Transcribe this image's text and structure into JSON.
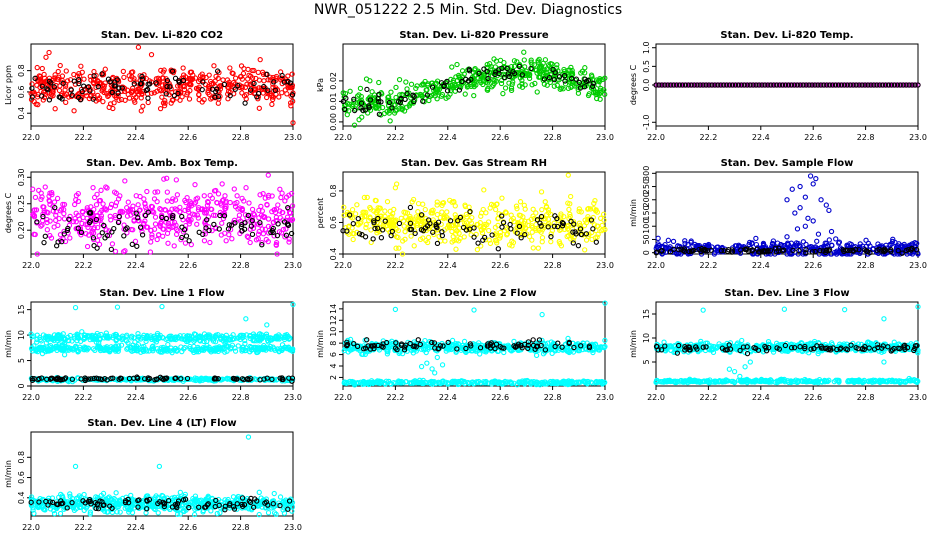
{
  "page": {
    "title": "NWR_051222  2.5 Min. Std. Dev. Diagnostics"
  },
  "colors": {
    "black": "#000000",
    "red": "#ff0000",
    "green": "#00cc00",
    "magenta": "#ff00ff",
    "yellow": "#ffff00",
    "blue": "#0000cc",
    "cyan": "#00ffff"
  },
  "chart_data": [
    {
      "type": "scatter",
      "title": "Stan. Dev. Li-820 CO2",
      "ylabel": "Licor ppm",
      "xlabel": "",
      "xlim": [
        22.0,
        23.0
      ],
      "ylim": [
        0.28,
        1.05
      ],
      "xticks": [
        "22.0",
        "22.2",
        "22.4",
        "22.6",
        "22.8",
        "23.0"
      ],
      "yticks": [
        "0.4",
        "0.6",
        "0.8"
      ],
      "ytick_values": [
        0.4,
        0.6,
        0.8
      ],
      "series": [
        {
          "name": "main",
          "color": "#ff0000",
          "mean": 0.65,
          "sd": 0.09,
          "n": 500,
          "seed": 11
        },
        {
          "name": "black",
          "color": "#000000",
          "mean": 0.64,
          "sd": 0.08,
          "n": 90,
          "seed": 12
        }
      ],
      "outliers": [
        [
          22.41,
          1.02
        ],
        [
          22.46,
          0.95
        ],
        [
          23.0,
          0.31
        ]
      ]
    },
    {
      "type": "scatter",
      "title": "Stan. Dev. Li-820 Pressure",
      "ylabel": "kPa",
      "xlabel": "",
      "xlim": [
        22.0,
        23.0
      ],
      "ylim": [
        -0.002,
        0.038
      ],
      "xticks": [
        "22.0",
        "22.2",
        "22.4",
        "22.6",
        "22.8",
        "23.0"
      ],
      "yticks": [
        "0.00",
        "0.01",
        "0.02"
      ],
      "ytick_values": [
        0.0,
        0.01,
        0.02
      ],
      "trend": [
        [
          22.0,
          0.009
        ],
        [
          22.2,
          0.01
        ],
        [
          22.35,
          0.015
        ],
        [
          22.5,
          0.022
        ],
        [
          22.7,
          0.025
        ],
        [
          22.85,
          0.022
        ],
        [
          23.0,
          0.016
        ]
      ],
      "series": [
        {
          "name": "main",
          "color": "#00cc00",
          "sd": 0.0035,
          "n": 500,
          "seed": 21
        },
        {
          "name": "black",
          "color": "#000000",
          "sd": 0.002,
          "n": 80,
          "seed": 22
        }
      ],
      "outliers": [
        [
          22.69,
          0.034
        ],
        [
          22.18,
          0.0005
        ]
      ]
    },
    {
      "type": "scatter",
      "title": "Stan. Dev. Li-820 Temp.",
      "ylabel": "degrees C",
      "xlabel": "",
      "xlim": [
        22.0,
        23.0
      ],
      "ylim": [
        -1.1,
        1.1
      ],
      "xticks": [
        "22.0",
        "22.2",
        "22.4",
        "22.6",
        "22.8",
        "23.0"
      ],
      "yticks": [
        "-1.0",
        "0.0",
        "0.5",
        "1.0"
      ],
      "ytick_values": [
        -1.0,
        0.0,
        0.5,
        1.0
      ],
      "series": [
        {
          "name": "main",
          "color": "#ff00ff",
          "mean": 0.0,
          "sd": 0.0,
          "n": 130,
          "seed": 31
        },
        {
          "name": "black",
          "color": "#000000",
          "mean": 0.0,
          "sd": 0.0,
          "n": 90,
          "seed": 32
        }
      ],
      "outliers": []
    },
    {
      "type": "scatter",
      "title": "Stan. Dev. Amb. Box Temp.",
      "ylabel": "degrees C",
      "xlabel": "",
      "xlim": [
        22.0,
        23.0
      ],
      "ylim": [
        0.155,
        0.31
      ],
      "xticks": [
        "22.0",
        "22.2",
        "22.4",
        "22.6",
        "22.8",
        "23.0"
      ],
      "yticks": [
        "0.20",
        "0.25",
        "0.30"
      ],
      "ytick_values": [
        0.2,
        0.25,
        0.3
      ],
      "series": [
        {
          "name": "main",
          "color": "#ff00ff",
          "mean": 0.225,
          "sd": 0.028,
          "n": 500,
          "seed": 41
        },
        {
          "name": "black",
          "color": "#000000",
          "mean": 0.205,
          "sd": 0.02,
          "n": 90,
          "seed": 42
        }
      ],
      "outliers": []
    },
    {
      "type": "scatter",
      "title": "Stan. Dev. Gas Stream RH",
      "ylabel": "percent",
      "xlabel": "",
      "xlim": [
        22.0,
        23.0
      ],
      "ylim": [
        0.4,
        0.92
      ],
      "xticks": [
        "22.0",
        "22.2",
        "22.4",
        "22.6",
        "22.8",
        "23.0"
      ],
      "yticks": [
        "0.4",
        "0.6",
        "0.8"
      ],
      "ytick_values": [
        0.4,
        0.6,
        0.8
      ],
      "series": [
        {
          "name": "main",
          "color": "#ffff00",
          "mean": 0.6,
          "sd": 0.07,
          "n": 500,
          "seed": 51
        },
        {
          "name": "black",
          "color": "#000000",
          "mean": 0.56,
          "sd": 0.05,
          "n": 90,
          "seed": 52
        }
      ],
      "outliers": [
        [
          22.2,
          0.82
        ],
        [
          22.86,
          0.9
        ]
      ]
    },
    {
      "type": "scatter",
      "title": "Stan. Dev. Sample Flow",
      "ylabel": "ml/min",
      "xlabel": "",
      "xlim": [
        22.0,
        23.0
      ],
      "ylim": [
        -5,
        305
      ],
      "xticks": [
        "22.0",
        "22.2",
        "22.4",
        "22.6",
        "22.8",
        "23.0"
      ],
      "yticks": [
        "0",
        "50",
        "100",
        "150",
        "200",
        "250",
        "300"
      ],
      "ytick_values": [
        0,
        50,
        100,
        150,
        200,
        250,
        300
      ],
      "series": [
        {
          "name": "main",
          "color": "#0000cc",
          "mean": 15,
          "sd": 15,
          "n": 400,
          "seed": 61
        },
        {
          "name": "black",
          "color": "#000000",
          "mean": 8,
          "sd": 4,
          "n": 100,
          "seed": 62
        }
      ],
      "outliers": [
        [
          22.5,
          200
        ],
        [
          22.52,
          240
        ],
        [
          22.55,
          250
        ],
        [
          22.57,
          210
        ],
        [
          22.59,
          290
        ],
        [
          22.6,
          260
        ],
        [
          22.61,
          280
        ],
        [
          22.55,
          170
        ],
        [
          22.53,
          150
        ],
        [
          22.58,
          130
        ],
        [
          22.63,
          200
        ],
        [
          22.65,
          180
        ],
        [
          22.66,
          160
        ],
        [
          22.57,
          100
        ],
        [
          22.6,
          120
        ],
        [
          22.54,
          90
        ],
        [
          22.67,
          80
        ],
        [
          22.62,
          70
        ],
        [
          22.5,
          60
        ],
        [
          22.7,
          40
        ]
      ]
    },
    {
      "type": "scatter",
      "title": "Stan. Dev. Line 1 Flow",
      "ylabel": "ml/min",
      "xlabel": "",
      "xlim": [
        22.0,
        23.0
      ],
      "ylim": [
        0,
        16.5
      ],
      "xticks": [
        "22.0",
        "22.2",
        "22.4",
        "22.6",
        "22.8",
        "23.0"
      ],
      "yticks": [
        "0",
        "5",
        "10",
        "15"
      ],
      "ytick_values": [
        0,
        5,
        10,
        15
      ],
      "bands": [
        {
          "mean": 9.5,
          "sd": 0.4,
          "n": 320,
          "color": "#00ffff",
          "seed": 71
        },
        {
          "mean": 7.3,
          "sd": 0.35,
          "n": 320,
          "color": "#00ffff",
          "seed": 72
        },
        {
          "mean": 1.3,
          "sd": 0.15,
          "n": 260,
          "color": "#00ffff",
          "seed": 73
        }
      ],
      "series": [
        {
          "name": "black",
          "color": "#000000",
          "mean": 1.4,
          "sd": 0.12,
          "n": 90,
          "seed": 74
        }
      ],
      "outliers": [
        [
          22.17,
          15.4
        ],
        [
          22.33,
          15.5
        ],
        [
          22.5,
          15.6
        ],
        [
          22.82,
          13.2
        ],
        [
          23.0,
          16
        ],
        [
          22.9,
          12
        ]
      ]
    },
    {
      "type": "scatter",
      "title": "Stan. Dev. Line 2 Flow",
      "ylabel": "ml/min",
      "xlabel": "",
      "xlim": [
        22.0,
        23.0
      ],
      "ylim": [
        0.5,
        15.2
      ],
      "xticks": [
        "22.0",
        "22.2",
        "22.4",
        "22.6",
        "22.8",
        "23.0"
      ],
      "yticks": [
        "2",
        "4",
        "6",
        "8",
        "10",
        "12",
        "14"
      ],
      "ytick_values": [
        2,
        4,
        6,
        8,
        10,
        12,
        14
      ],
      "bands": [
        {
          "mean": 7.3,
          "sd": 0.5,
          "n": 500,
          "color": "#00ffff",
          "seed": 81
        },
        {
          "mean": 1.1,
          "sd": 0.15,
          "n": 300,
          "color": "#00ffff",
          "seed": 82
        }
      ],
      "series": [
        {
          "name": "black",
          "color": "#000000",
          "mean": 7.6,
          "sd": 0.4,
          "n": 90,
          "seed": 83
        }
      ],
      "outliers": [
        [
          22.32,
          4.5
        ],
        [
          22.34,
          3.5
        ],
        [
          22.35,
          2.8
        ],
        [
          22.38,
          4.2
        ],
        [
          22.36,
          5.5
        ],
        [
          22.3,
          3.9
        ],
        [
          22.2,
          13.9
        ],
        [
          22.5,
          13.8
        ],
        [
          22.76,
          13
        ],
        [
          23.0,
          15.0
        ]
      ]
    },
    {
      "type": "scatter",
      "title": "Stan. Dev. Line 3 Flow",
      "ylabel": "ml/min",
      "xlabel": "",
      "xlim": [
        22.0,
        23.0
      ],
      "ylim": [
        0,
        17.5
      ],
      "xticks": [
        "22.0",
        "22.2",
        "22.4",
        "22.6",
        "22.8",
        "23.0"
      ],
      "yticks": [
        "5",
        "10",
        "15"
      ],
      "ytick_values": [
        5,
        10,
        15
      ],
      "bands": [
        {
          "mean": 8.0,
          "sd": 0.5,
          "n": 500,
          "color": "#00ffff",
          "seed": 91
        },
        {
          "mean": 1.0,
          "sd": 0.15,
          "n": 300,
          "color": "#00ffff",
          "seed": 92
        }
      ],
      "series": [
        {
          "name": "black",
          "color": "#000000",
          "mean": 7.9,
          "sd": 0.4,
          "n": 90,
          "seed": 93
        }
      ],
      "outliers": [
        [
          22.3,
          3
        ],
        [
          22.32,
          2
        ],
        [
          22.34,
          4
        ],
        [
          22.36,
          5
        ],
        [
          22.28,
          3.5
        ],
        [
          22.18,
          15.8
        ],
        [
          22.49,
          16
        ],
        [
          22.72,
          15.9
        ],
        [
          22.87,
          14
        ],
        [
          23.0,
          16.5
        ],
        [
          22.84,
          9
        ],
        [
          22.87,
          5
        ]
      ]
    },
    {
      "type": "scatter",
      "title": "Stan. Dev. Line 4 (LT) Flow",
      "ylabel": "ml/min",
      "xlabel": "",
      "xlim": [
        22.0,
        23.0
      ],
      "ylim": [
        0.22,
        1.05
      ],
      "xticks": [
        "22.0",
        "22.2",
        "22.4",
        "22.6",
        "22.8",
        "23.0"
      ],
      "yticks": [
        "0.4",
        "0.6",
        "0.8"
      ],
      "ytick_values": [
        0.4,
        0.6,
        0.8
      ],
      "bands": [
        {
          "mean": 0.34,
          "sd": 0.04,
          "n": 600,
          "color": "#00ffff",
          "seed": 101
        }
      ],
      "series": [
        {
          "name": "black",
          "color": "#000000",
          "mean": 0.34,
          "sd": 0.025,
          "n": 90,
          "seed": 102
        }
      ],
      "outliers": [
        [
          22.17,
          0.71
        ],
        [
          22.49,
          0.71
        ],
        [
          22.83,
          1.0
        ]
      ]
    }
  ]
}
